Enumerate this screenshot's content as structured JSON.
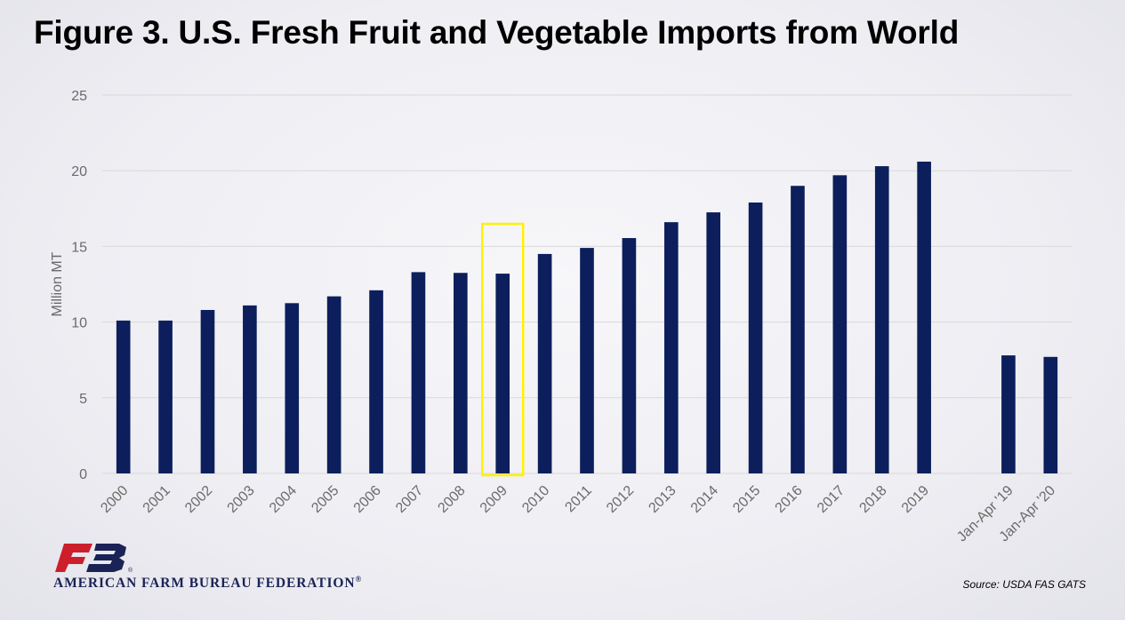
{
  "title": "Figure 3. U.S. Fresh Fruit and Vegetable Imports from World",
  "source": "Source: USDA FAS GATS",
  "organization": "AMERICAN FARM BUREAU FEDERATION",
  "organization_mark": "®",
  "logo_text": "FB",
  "logo_registered": "®",
  "colors": {
    "bar": "#0c1f5c",
    "highlight": "#fff200",
    "gridline": "#d9d9d9",
    "axis_text": "#6b6b6b",
    "brand_red": "#cc1f2b",
    "brand_navy": "#1a2356"
  },
  "chart_data": {
    "type": "bar",
    "ylabel": "Million MT",
    "ylim": [
      0,
      25
    ],
    "yticks": [
      0,
      5,
      10,
      15,
      20,
      25
    ],
    "grid": true,
    "categories": [
      "2000",
      "2001",
      "2002",
      "2003",
      "2004",
      "2005",
      "2006",
      "2007",
      "2008",
      "2009",
      "2010",
      "2011",
      "2012",
      "2013",
      "2014",
      "2015",
      "2016",
      "2017",
      "2018",
      "2019",
      "",
      "Jan-Apr '19",
      "Jan-Apr '20"
    ],
    "values": [
      10.1,
      10.1,
      10.8,
      11.1,
      11.25,
      11.7,
      12.1,
      13.3,
      13.25,
      13.2,
      14.5,
      14.9,
      15.55,
      16.6,
      17.25,
      17.9,
      19.0,
      19.7,
      20.3,
      20.6,
      null,
      7.8,
      7.7
    ],
    "highlight_category": "2009"
  }
}
